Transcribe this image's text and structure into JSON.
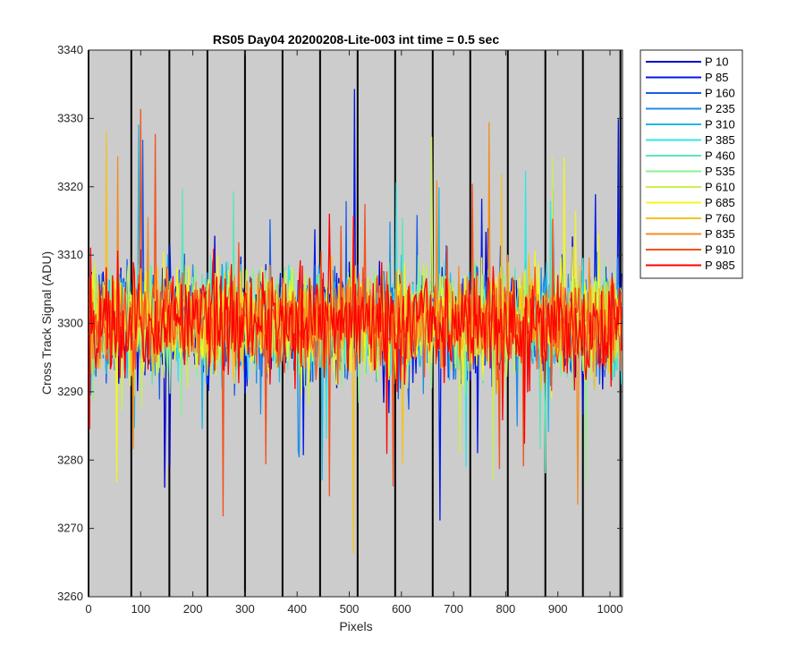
{
  "chart_data": {
    "type": "line",
    "title": "RS05 Day04 20200208-Lite-003 int time = 0.5 sec",
    "xlabel": "Pixels",
    "ylabel": "Cross Track Signal (ADU)",
    "xlim": [
      0,
      1024
    ],
    "ylim": [
      3260,
      3340
    ],
    "xticks": [
      0,
      100,
      200,
      300,
      400,
      500,
      600,
      700,
      800,
      900,
      1000
    ],
    "yticks": [
      3260,
      3270,
      3280,
      3290,
      3300,
      3310,
      3320,
      3330,
      3340
    ],
    "background": "#cccccc",
    "column_dividers_x": [
      0,
      82,
      155,
      228,
      300,
      372,
      444,
      516,
      588,
      660,
      732,
      804,
      876,
      948,
      1020
    ],
    "noise": {
      "mean": 3300,
      "typical_range": [
        3282,
        3318
      ]
    },
    "legend_position": "outside-right",
    "series": [
      {
        "name": "P 10",
        "color": "#0000cd"
      },
      {
        "name": "P 85",
        "color": "#0018e6"
      },
      {
        "name": "P 160",
        "color": "#1a5ce6"
      },
      {
        "name": "P 235",
        "color": "#1f8ee6"
      },
      {
        "name": "P 310",
        "color": "#1fb8e6"
      },
      {
        "name": "P 385",
        "color": "#33e6e6"
      },
      {
        "name": "P 460",
        "color": "#5ce6b8"
      },
      {
        "name": "P 535",
        "color": "#8ef08e"
      },
      {
        "name": "P 610",
        "color": "#c8f050"
      },
      {
        "name": "P 685",
        "color": "#f5f51f"
      },
      {
        "name": "P 760",
        "color": "#f5c21f"
      },
      {
        "name": "P 835",
        "color": "#f58c1f"
      },
      {
        "name": "P 910",
        "color": "#f5501f"
      },
      {
        "name": "P 985",
        "color": "#ff0000"
      }
    ]
  }
}
